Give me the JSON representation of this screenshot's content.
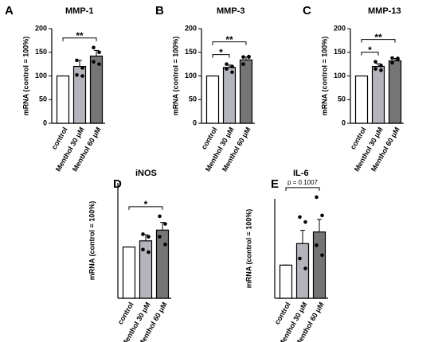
{
  "chart_data": [
    {
      "type": "bar",
      "panel": "A",
      "title": "MMP-1",
      "y_label": "mRNA (control  = 100%)",
      "categories": [
        "control",
        "Menthol 30 μM",
        "Menthol 60 μM"
      ],
      "values": [
        100,
        120,
        142
      ],
      "errors": [
        0,
        13,
        12
      ],
      "points": [
        null,
        [
          133,
          117,
          102,
          100
        ],
        [
          160,
          150,
          130,
          125
        ]
      ],
      "colors": [
        "#ffffff",
        "#b4b4bc",
        "#757575"
      ],
      "ylim": [
        0,
        200
      ],
      "yticks": [
        0,
        50,
        100,
        150,
        200
      ],
      "annotations": [
        {
          "text": "**",
          "from": 0,
          "to": 2
        }
      ]
    },
    {
      "type": "bar",
      "panel": "B",
      "title": "MMP-3",
      "y_label": "mRNA (control  = 100%)",
      "categories": [
        "control",
        "Menthol 30 μM",
        "Menthol 60 μM"
      ],
      "values": [
        100,
        118,
        134
      ],
      "errors": [
        0,
        5,
        6
      ],
      "points": [
        null,
        [
          125,
          120,
          115,
          108
        ],
        [
          140,
          141,
          125,
          140
        ]
      ],
      "colors": [
        "#ffffff",
        "#b4b4bc",
        "#757575"
      ],
      "ylim": [
        0,
        200
      ],
      "yticks": [
        0,
        50,
        100,
        150,
        200
      ],
      "annotations": [
        {
          "text": "*",
          "from": 0,
          "to": 1
        },
        {
          "text": "**",
          "from": 0,
          "to": 2
        }
      ]
    },
    {
      "type": "bar",
      "panel": "C",
      "title": "MMP-13",
      "y_label": "mRNA (control  = 100%)",
      "categories": [
        "control",
        "Menthol 30 μM",
        "Menthol 60 μM"
      ],
      "values": [
        100,
        120,
        132
      ],
      "errors": [
        0,
        6,
        5
      ],
      "points": [
        null,
        [
          130,
          122,
          115,
          112
        ],
        [
          138,
          137,
          128,
          135
        ]
      ],
      "colors": [
        "#ffffff",
        "#b4b4bc",
        "#757575"
      ],
      "ylim": [
        0,
        200
      ],
      "yticks": [
        0,
        50,
        100,
        150,
        200
      ],
      "annotations": [
        {
          "text": "*",
          "from": 0,
          "to": 1
        },
        {
          "text": "**",
          "from": 0,
          "to": 2
        }
      ]
    },
    {
      "type": "bar",
      "panel": "D",
      "title": "iNOS",
      "y_label": "mRNA (control  = 100%)",
      "categories": [
        "control",
        "Menthol 30 μM",
        "Menthol 60 μM"
      ],
      "values": [
        100,
        112,
        133
      ],
      "errors": [
        0,
        12,
        15
      ],
      "points": [
        null,
        [
          125,
          120,
          95,
          90
        ],
        [
          160,
          145,
          120,
          105
        ]
      ],
      "colors": [
        "#ffffff",
        "#b4b4bc",
        "#757575"
      ],
      "ylim": [
        0,
        225
      ],
      "annotations": [
        {
          "text": "*",
          "from": 0,
          "to": 2
        }
      ]
    },
    {
      "type": "bar",
      "panel": "E",
      "title": "IL-6",
      "y_label": "mRNA (control = 100%)",
      "categories": [
        "control",
        "Menthol 30 μM",
        "Menthol 60 μM"
      ],
      "values": [
        100,
        165,
        200
      ],
      "errors": [
        0,
        40,
        38
      ],
      "points": [
        null,
        [
          245,
          230,
          120,
          90
        ],
        [
          305,
          250,
          160,
          130
        ]
      ],
      "colors": [
        "#ffffff",
        "#b4b4bc",
        "#757575"
      ],
      "ylim": [
        0,
        300
      ],
      "annotations": [
        {
          "text": "p = 0.1007",
          "from": 0,
          "to": 2
        }
      ]
    }
  ]
}
